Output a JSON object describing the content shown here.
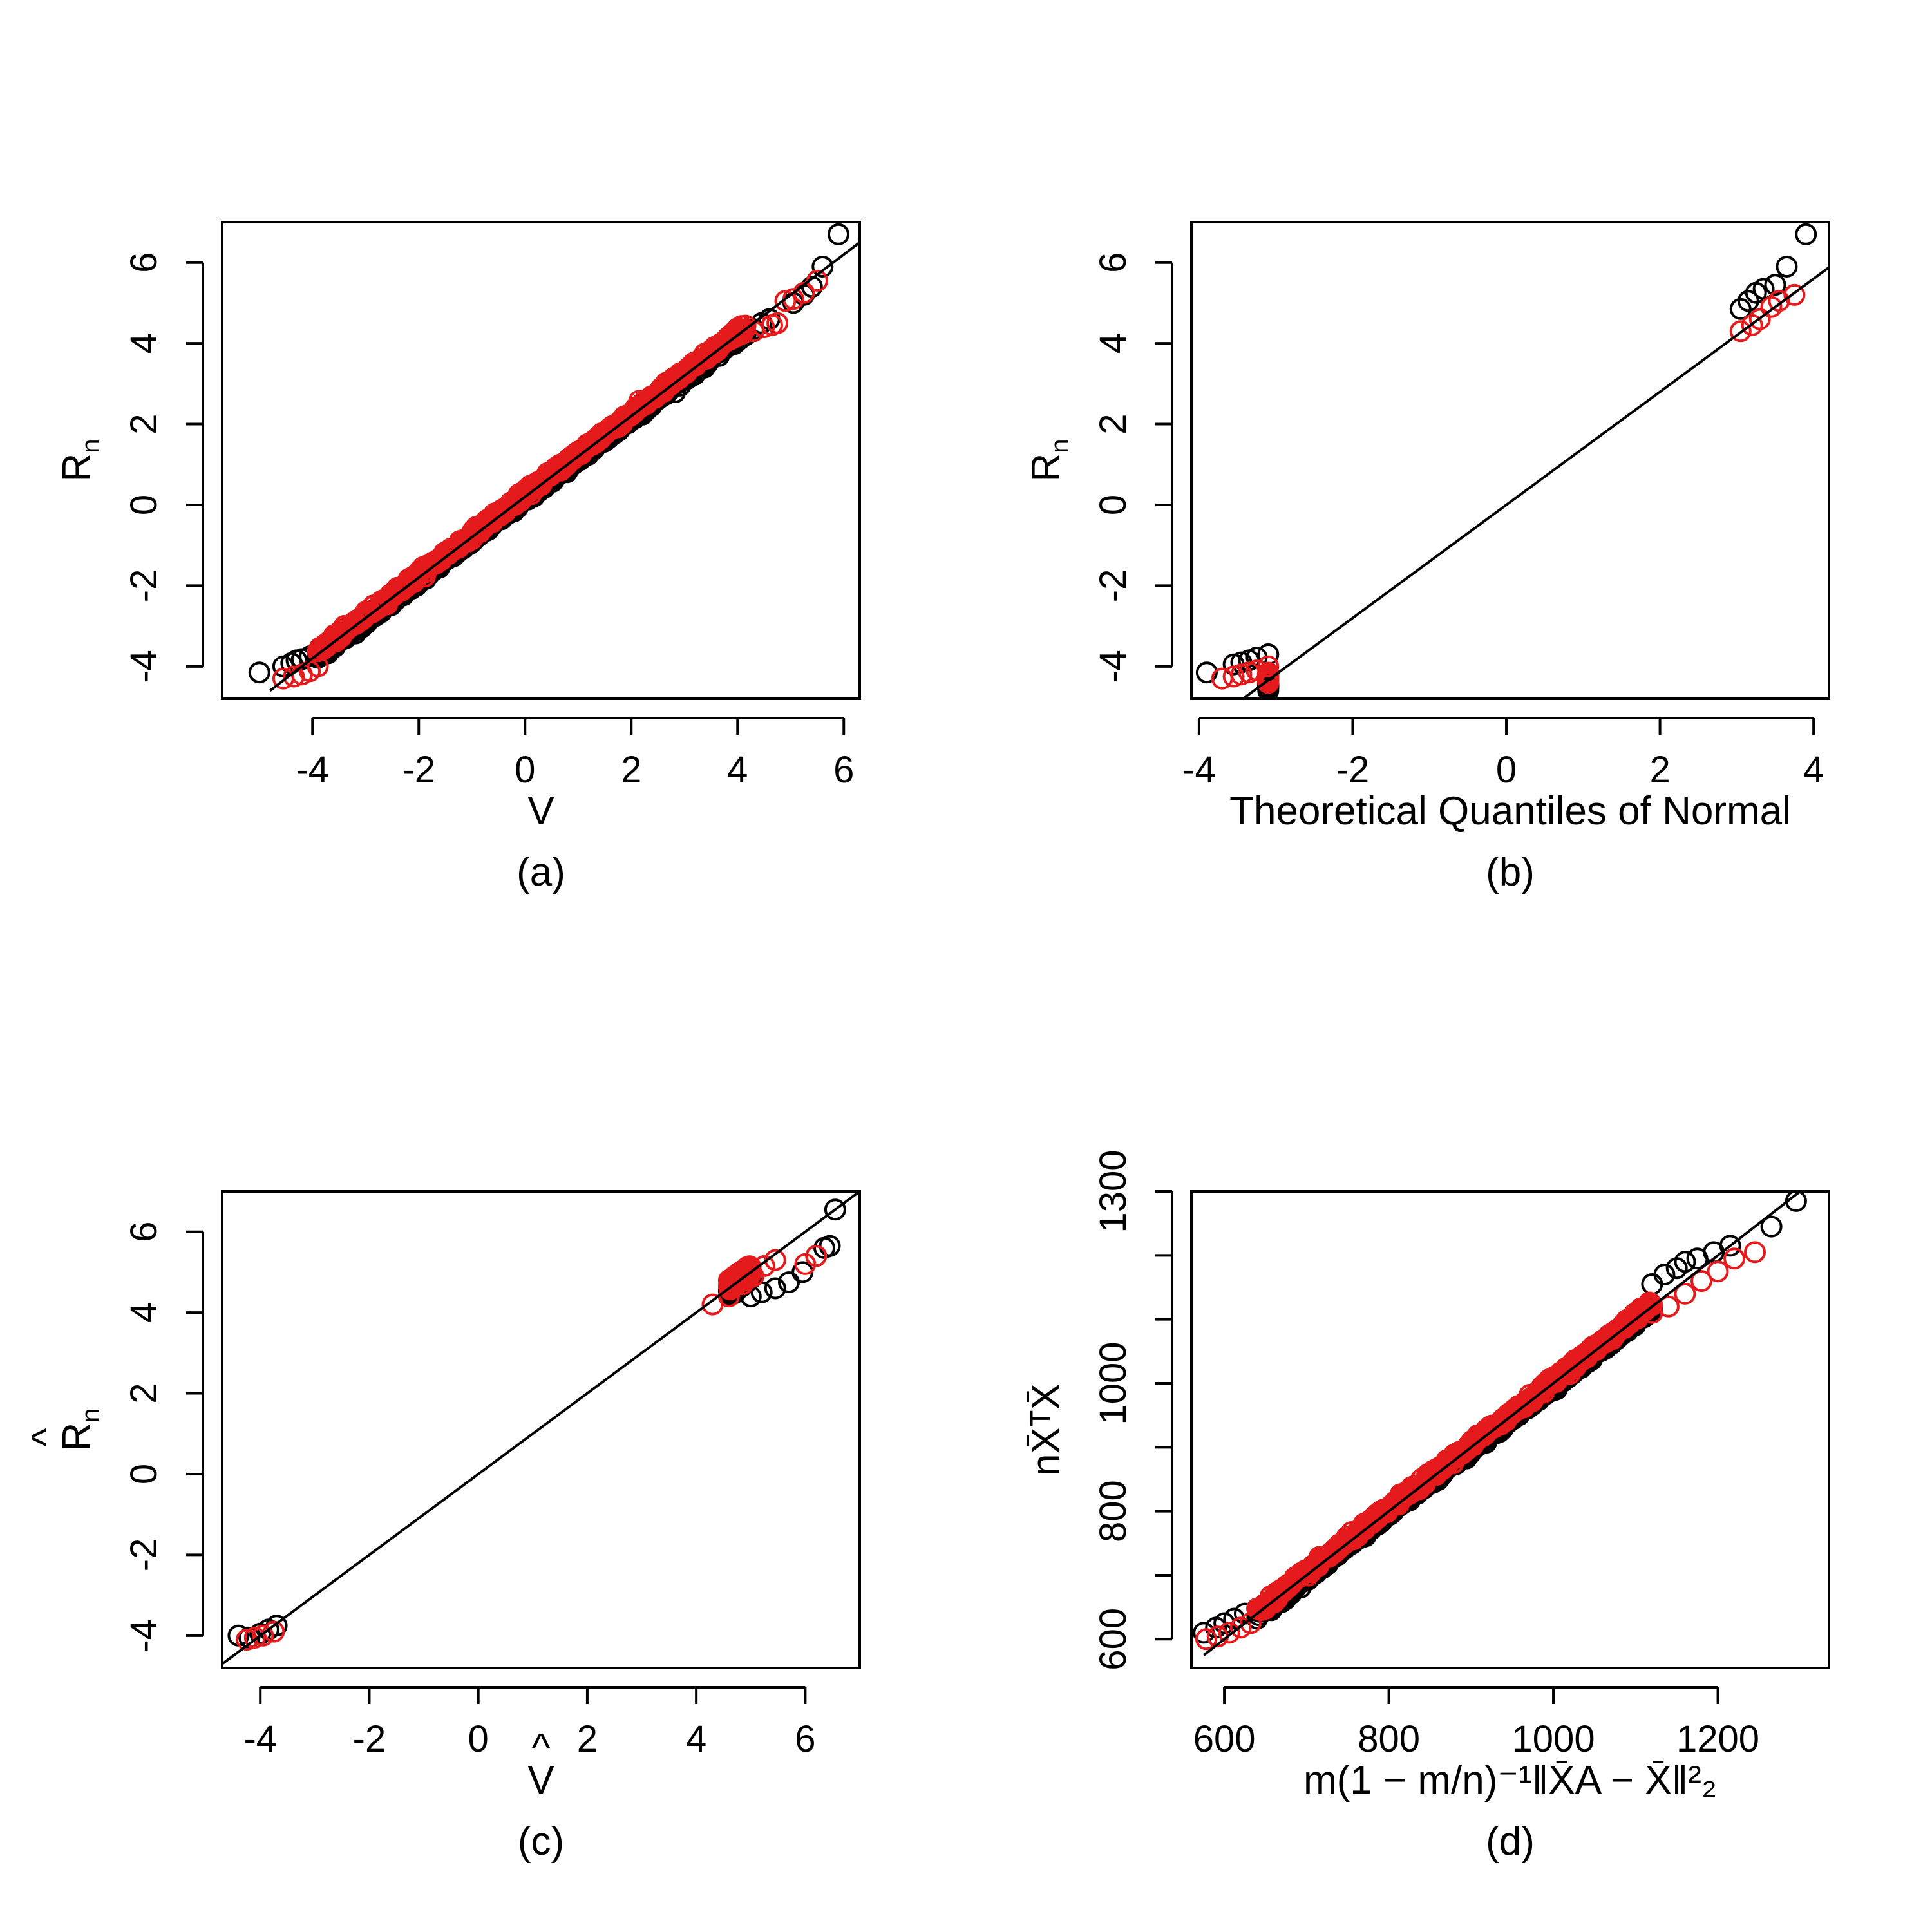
{
  "figure": {
    "colors": {
      "black": "#000000",
      "red": "#e41a1c",
      "background": "#ffffff"
    }
  },
  "chart_data": [
    {
      "type": "scatter",
      "caption": "(a)",
      "xlabel": "V",
      "ylabel": {
        "main": "R",
        "sub": "n",
        "hat": false
      },
      "xlim": [
        -5.7,
        6.3
      ],
      "ylim": [
        -4.8,
        7.0
      ],
      "xticks": [
        -4,
        -2,
        0,
        2,
        4,
        6
      ],
      "yticks": [
        -4,
        -2,
        0,
        2,
        4,
        6
      ],
      "reference_line": {
        "slope": 1,
        "intercept": 0.2,
        "x_range": [
          -4.8,
          6.3
        ]
      },
      "series": [
        {
          "color": "black",
          "tail_points": [
            [
              -5.0,
              -4.15
            ],
            [
              -4.55,
              -4.0
            ],
            [
              -4.4,
              -3.92
            ],
            [
              -4.3,
              -3.85
            ],
            [
              -4.2,
              -3.82
            ],
            [
              -4.05,
              -3.75
            ],
            [
              4.15,
              4.2
            ],
            [
              4.3,
              4.35
            ],
            [
              4.45,
              4.5
            ],
            [
              4.6,
              4.6
            ],
            [
              5.05,
              5.0
            ],
            [
              5.25,
              5.2
            ],
            [
              5.4,
              5.4
            ],
            [
              5.6,
              5.9
            ],
            [
              5.9,
              6.7
            ]
          ]
        },
        {
          "color": "red",
          "tail_points": [
            [
              -4.55,
              -4.3
            ],
            [
              -4.35,
              -4.25
            ],
            [
              -4.2,
              -4.2
            ],
            [
              -4.05,
              -4.12
            ],
            [
              -3.9,
              -4.0
            ],
            [
              4.3,
              4.3
            ],
            [
              4.5,
              4.4
            ],
            [
              4.65,
              4.45
            ],
            [
              4.75,
              4.5
            ],
            [
              4.9,
              5.05
            ],
            [
              5.05,
              5.1
            ],
            [
              5.25,
              5.25
            ],
            [
              5.5,
              5.55
            ]
          ]
        }
      ]
    },
    {
      "type": "scatter",
      "caption": "(b)",
      "xlabel": "Theoretical Quantiles of Normal",
      "ylabel": {
        "main": "R",
        "sub": "n",
        "hat": false
      },
      "xlim": [
        -4.1,
        4.2
      ],
      "ylim": [
        -4.8,
        7.0
      ],
      "xticks": [
        -4,
        -2,
        0,
        2,
        4
      ],
      "yticks": [
        -4,
        -2,
        0,
        2,
        4,
        6
      ],
      "reference_line": {
        "slope": 1.4,
        "intercept": 0.0,
        "x_range": [
          -3.5,
          4.2
        ]
      },
      "series": [
        {
          "color": "black",
          "tail_points": [
            [
              -3.9,
              -4.15
            ],
            [
              -3.55,
              -3.95
            ],
            [
              -3.45,
              -3.9
            ],
            [
              -3.35,
              -3.85
            ],
            [
              -3.25,
              -3.78
            ],
            [
              -3.1,
              -3.7
            ],
            [
              3.05,
              4.85
            ],
            [
              3.15,
              5.05
            ],
            [
              3.25,
              5.25
            ],
            [
              3.35,
              5.35
            ],
            [
              3.5,
              5.45
            ],
            [
              3.65,
              5.9
            ],
            [
              3.9,
              6.7
            ]
          ]
        },
        {
          "color": "red",
          "tail_points": [
            [
              -3.7,
              -4.3
            ],
            [
              -3.55,
              -4.25
            ],
            [
              -3.45,
              -4.2
            ],
            [
              -3.35,
              -4.15
            ],
            [
              -3.25,
              -4.1
            ],
            [
              -3.1,
              -4.0
            ],
            [
              3.05,
              4.3
            ],
            [
              3.2,
              4.45
            ],
            [
              3.3,
              4.6
            ],
            [
              3.45,
              4.9
            ],
            [
              3.55,
              5.05
            ],
            [
              3.75,
              5.2
            ]
          ]
        }
      ]
    },
    {
      "type": "scatter",
      "caption": "(c)",
      "xlabel": {
        "main": "V",
        "hat": true
      },
      "ylabel": {
        "main": "R",
        "sub": "n",
        "hat": true
      },
      "xlim": [
        -4.7,
        7.0
      ],
      "ylim": [
        -4.8,
        7.0
      ],
      "xticks": [
        -4,
        -2,
        0,
        2,
        4,
        6
      ],
      "yticks": [
        -4,
        -2,
        0,
        2,
        4,
        6
      ],
      "reference_line": {
        "slope": 1,
        "intercept": 0.0,
        "x_range": [
          -4.7,
          7.0
        ]
      },
      "series": [
        {
          "color": "black",
          "tail_points": [
            [
              -4.4,
              -4.0
            ],
            [
              -4.2,
              -4.05
            ],
            [
              -4.0,
              -3.95
            ],
            [
              -3.85,
              -3.85
            ],
            [
              -3.7,
              -3.75
            ],
            [
              5.0,
              4.4
            ],
            [
              5.2,
              4.5
            ],
            [
              5.45,
              4.6
            ],
            [
              5.7,
              4.75
            ],
            [
              5.95,
              5.0
            ],
            [
              6.2,
              5.4
            ],
            [
              6.35,
              5.6
            ],
            [
              6.45,
              5.65
            ],
            [
              6.55,
              6.55
            ]
          ]
        },
        {
          "color": "red",
          "tail_points": [
            [
              -4.25,
              -4.1
            ],
            [
              -4.1,
              -4.05
            ],
            [
              -3.95,
              -4.0
            ],
            [
              -3.75,
              -3.9
            ],
            [
              4.3,
              4.2
            ],
            [
              4.6,
              4.4
            ],
            [
              4.85,
              4.7
            ],
            [
              5.05,
              4.9
            ],
            [
              5.25,
              5.15
            ],
            [
              5.45,
              5.3
            ],
            [
              6.0,
              5.2
            ],
            [
              6.2,
              5.4
            ]
          ]
        }
      ]
    },
    {
      "type": "scatter",
      "caption": "(d)",
      "xlabel": {
        "text": "m(1 − m/n)⁻¹‖X̄A − X̄‖²₂"
      },
      "ylabel": {
        "text": "nX̄ᵀX̄"
      },
      "xlim": [
        560,
        1335
      ],
      "ylim": [
        555,
        1300
      ],
      "xticks": [
        600,
        800,
        1000,
        1200
      ],
      "yticks": [
        600,
        700,
        800,
        900,
        1000,
        1100,
        1200,
        1300
      ],
      "ytick_labels": [
        "600",
        "",
        "800",
        "",
        "1000",
        "",
        "",
        "1300"
      ],
      "reference_line": {
        "slope": 1,
        "intercept": 0,
        "x_range": [
          575,
          1335
        ]
      },
      "series": [
        {
          "color": "black",
          "tail_points": [
            [
              575,
              610
            ],
            [
              590,
              618
            ],
            [
              600,
              625
            ],
            [
              612,
              632
            ],
            [
              625,
              640
            ],
            [
              640,
              648
            ],
            [
              1120,
              1155
            ],
            [
              1135,
              1170
            ],
            [
              1150,
              1180
            ],
            [
              1160,
              1190
            ],
            [
              1175,
              1195
            ],
            [
              1195,
              1205
            ],
            [
              1215,
              1215
            ],
            [
              1265,
              1245
            ],
            [
              1295,
              1285
            ]
          ]
        },
        {
          "color": "red",
          "tail_points": [
            [
              578,
              600
            ],
            [
              592,
              604
            ],
            [
              606,
              610
            ],
            [
              620,
              618
            ],
            [
              632,
              625
            ],
            [
              1120,
              1110
            ],
            [
              1140,
              1120
            ],
            [
              1160,
              1140
            ],
            [
              1180,
              1160
            ],
            [
              1200,
              1175
            ],
            [
              1220,
              1195
            ],
            [
              1245,
              1205
            ]
          ]
        }
      ]
    }
  ]
}
